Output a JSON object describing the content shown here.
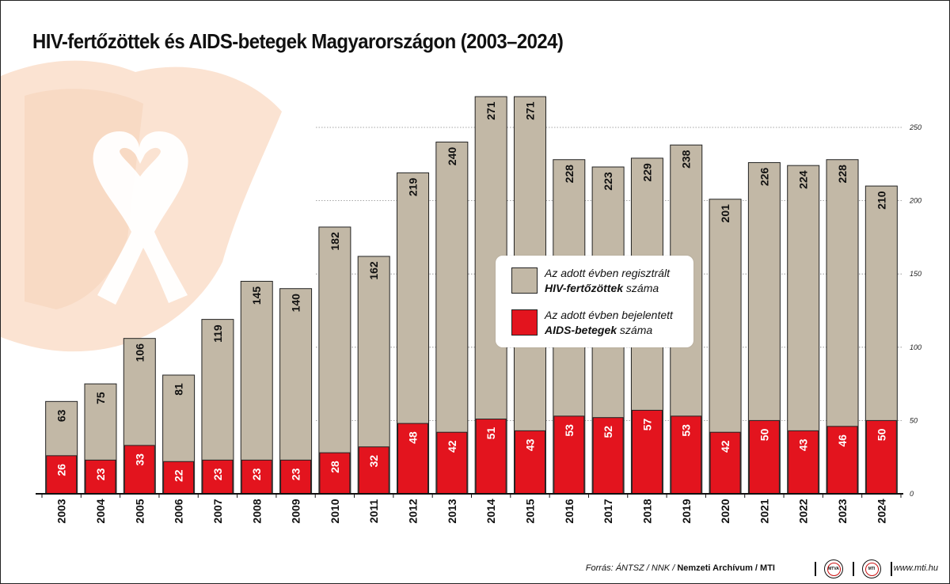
{
  "title": "HIV-fertőzöttek és AIDS-betegek Magyarországon (2003–2024)",
  "legend": {
    "hiv": {
      "line1": "Az adott évben regisztrált",
      "bold": "HIV-fertőzöttek",
      "rest": " száma"
    },
    "aids": {
      "line1": "Az adott évben bejelentett",
      "bold": "AIDS-betegek",
      "rest": " száma"
    }
  },
  "footer": {
    "source_prefix": "Forrás: ÁNTSZ / NNK / ",
    "source_archive": "Nemzeti Archívum",
    "source_sep": " / ",
    "source_mti": "MTI",
    "logo1": "MTVA",
    "logo2": "MTI",
    "website": "www.mti.hu"
  },
  "colors": {
    "hiv": "#c2b8a6",
    "aids": "#e3141e",
    "background_hand": "#fbe3d2"
  },
  "chart_data": {
    "type": "bar",
    "title": "HIV-fertőzöttek és AIDS-betegek Magyarországon (2003–2024)",
    "xlabel": "",
    "ylabel": "",
    "ylim": [
      0,
      250
    ],
    "yticks": [
      0,
      50,
      100,
      150,
      200,
      250
    ],
    "grid": true,
    "categories": [
      "2003",
      "2004",
      "2005",
      "2006",
      "2007",
      "2008",
      "2009",
      "2010",
      "2011",
      "2012",
      "2013",
      "2014",
      "2015",
      "2016",
      "2017",
      "2018",
      "2019",
      "2020",
      "2021",
      "2022",
      "2023",
      "2024"
    ],
    "series": [
      {
        "name": "Az adott évben regisztrált HIV-fertőzöttek száma",
        "color": "#c2b8a6",
        "values": [
          63,
          75,
          106,
          81,
          119,
          145,
          140,
          182,
          162,
          219,
          240,
          271,
          271,
          228,
          223,
          229,
          238,
          201,
          226,
          224,
          228,
          210
        ]
      },
      {
        "name": "Az adott évben bejelentett AIDS-betegek száma",
        "color": "#e3141e",
        "values": [
          26,
          23,
          33,
          22,
          23,
          23,
          23,
          28,
          32,
          48,
          42,
          51,
          43,
          53,
          52,
          57,
          53,
          42,
          50,
          43,
          46,
          50
        ]
      }
    ]
  }
}
